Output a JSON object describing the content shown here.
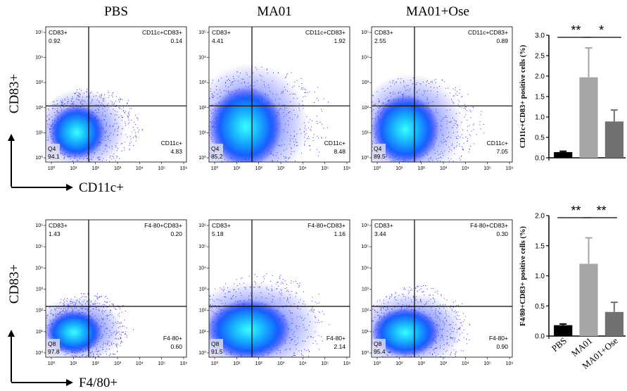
{
  "columns": [
    "PBS",
    "MA01",
    "MA01+Ose"
  ],
  "rows": [
    {
      "y_title": "CD83+",
      "x_title": "CD11c+",
      "panels": [
        {
          "ul_name": "CD83+",
          "ul_val": "0.92",
          "ur_name": "CD11c+CD83+",
          "ur_val": "0.14",
          "ll_name": "Q4",
          "ll_val": "94.1",
          "lr_name": "CD11c+",
          "lr_val": "4.83"
        },
        {
          "ul_name": "CD83+",
          "ul_val": "4.41",
          "ur_name": "CD11c+CD83+",
          "ur_val": "1.92",
          "ll_name": "Q4",
          "ll_val": "85.2",
          "lr_name": "CD11c+",
          "lr_val": "8.48"
        },
        {
          "ul_name": "CD83+",
          "ul_val": "2.55",
          "ur_name": "CD11c+CD83+",
          "ur_val": "0.89",
          "ll_name": "Q4",
          "ll_val": "89.5",
          "lr_name": "CD11c+",
          "lr_val": "7.05"
        }
      ]
    },
    {
      "y_title": "CD83+",
      "x_title": "F4/80+",
      "panels": [
        {
          "ul_name": "CD83+",
          "ul_val": "1.43",
          "ur_name": "F4-80+CD83+",
          "ur_val": "0.20",
          "ll_name": "Q8",
          "ll_val": "97.8",
          "lr_name": "F4-80+",
          "lr_val": "0.60"
        },
        {
          "ul_name": "CD83+",
          "ul_val": "5.18",
          "ur_name": "F4-80+CD83+",
          "ur_val": "1.16",
          "ll_name": "Q8",
          "ll_val": "91.5",
          "lr_name": "F4-80+",
          "lr_val": "2.14"
        },
        {
          "ul_name": "CD83+",
          "ul_val": "3.44",
          "ur_name": "F4-80+CD83+",
          "ur_val": "0.30",
          "ll_name": "Q8",
          "ll_val": "95.4",
          "lr_name": "F4-80+",
          "lr_val": "0.90"
        }
      ]
    }
  ],
  "flow_ticks": [
    "10⁰",
    "10¹",
    "10²",
    "10³",
    "10⁴",
    "10⁵",
    "10⁶"
  ],
  "colors": {
    "pbs": "#000000",
    "ma01": "#a6a6a6",
    "ose": "#707070",
    "density_low": "#0000ff",
    "density_high": "#00ffff"
  },
  "chart_data": [
    {
      "type": "bar",
      "categories": [
        "PBS",
        "MA01",
        "MA01+Ose"
      ],
      "values": [
        0.14,
        1.97,
        0.89
      ],
      "errors": [
        0.02,
        0.72,
        0.28
      ],
      "ylabel": "CD11c+CD83+ positive cells (%)",
      "ylim": [
        0,
        3.0
      ],
      "yticks": [
        "0.0",
        "0.5",
        "1.0",
        "1.5",
        "2.0",
        "2.5",
        "3.0"
      ],
      "significance": [
        {
          "between": [
            0,
            1
          ],
          "label": "**"
        },
        {
          "between": [
            1,
            2
          ],
          "label": "*"
        }
      ]
    },
    {
      "type": "bar",
      "categories": [
        "PBS",
        "MA01",
        "MA01+Ose"
      ],
      "values": [
        0.18,
        1.2,
        0.4
      ],
      "errors": [
        0.02,
        0.43,
        0.16
      ],
      "ylabel": "F4/80+CD83+ positive cells (%)",
      "ylim": [
        0,
        2.0
      ],
      "yticks": [
        "0.0",
        "0.5",
        "1.0",
        "1.5",
        "2.0"
      ],
      "significance": [
        {
          "between": [
            0,
            1
          ],
          "label": "**"
        },
        {
          "between": [
            1,
            2
          ],
          "label": "**"
        }
      ]
    }
  ]
}
